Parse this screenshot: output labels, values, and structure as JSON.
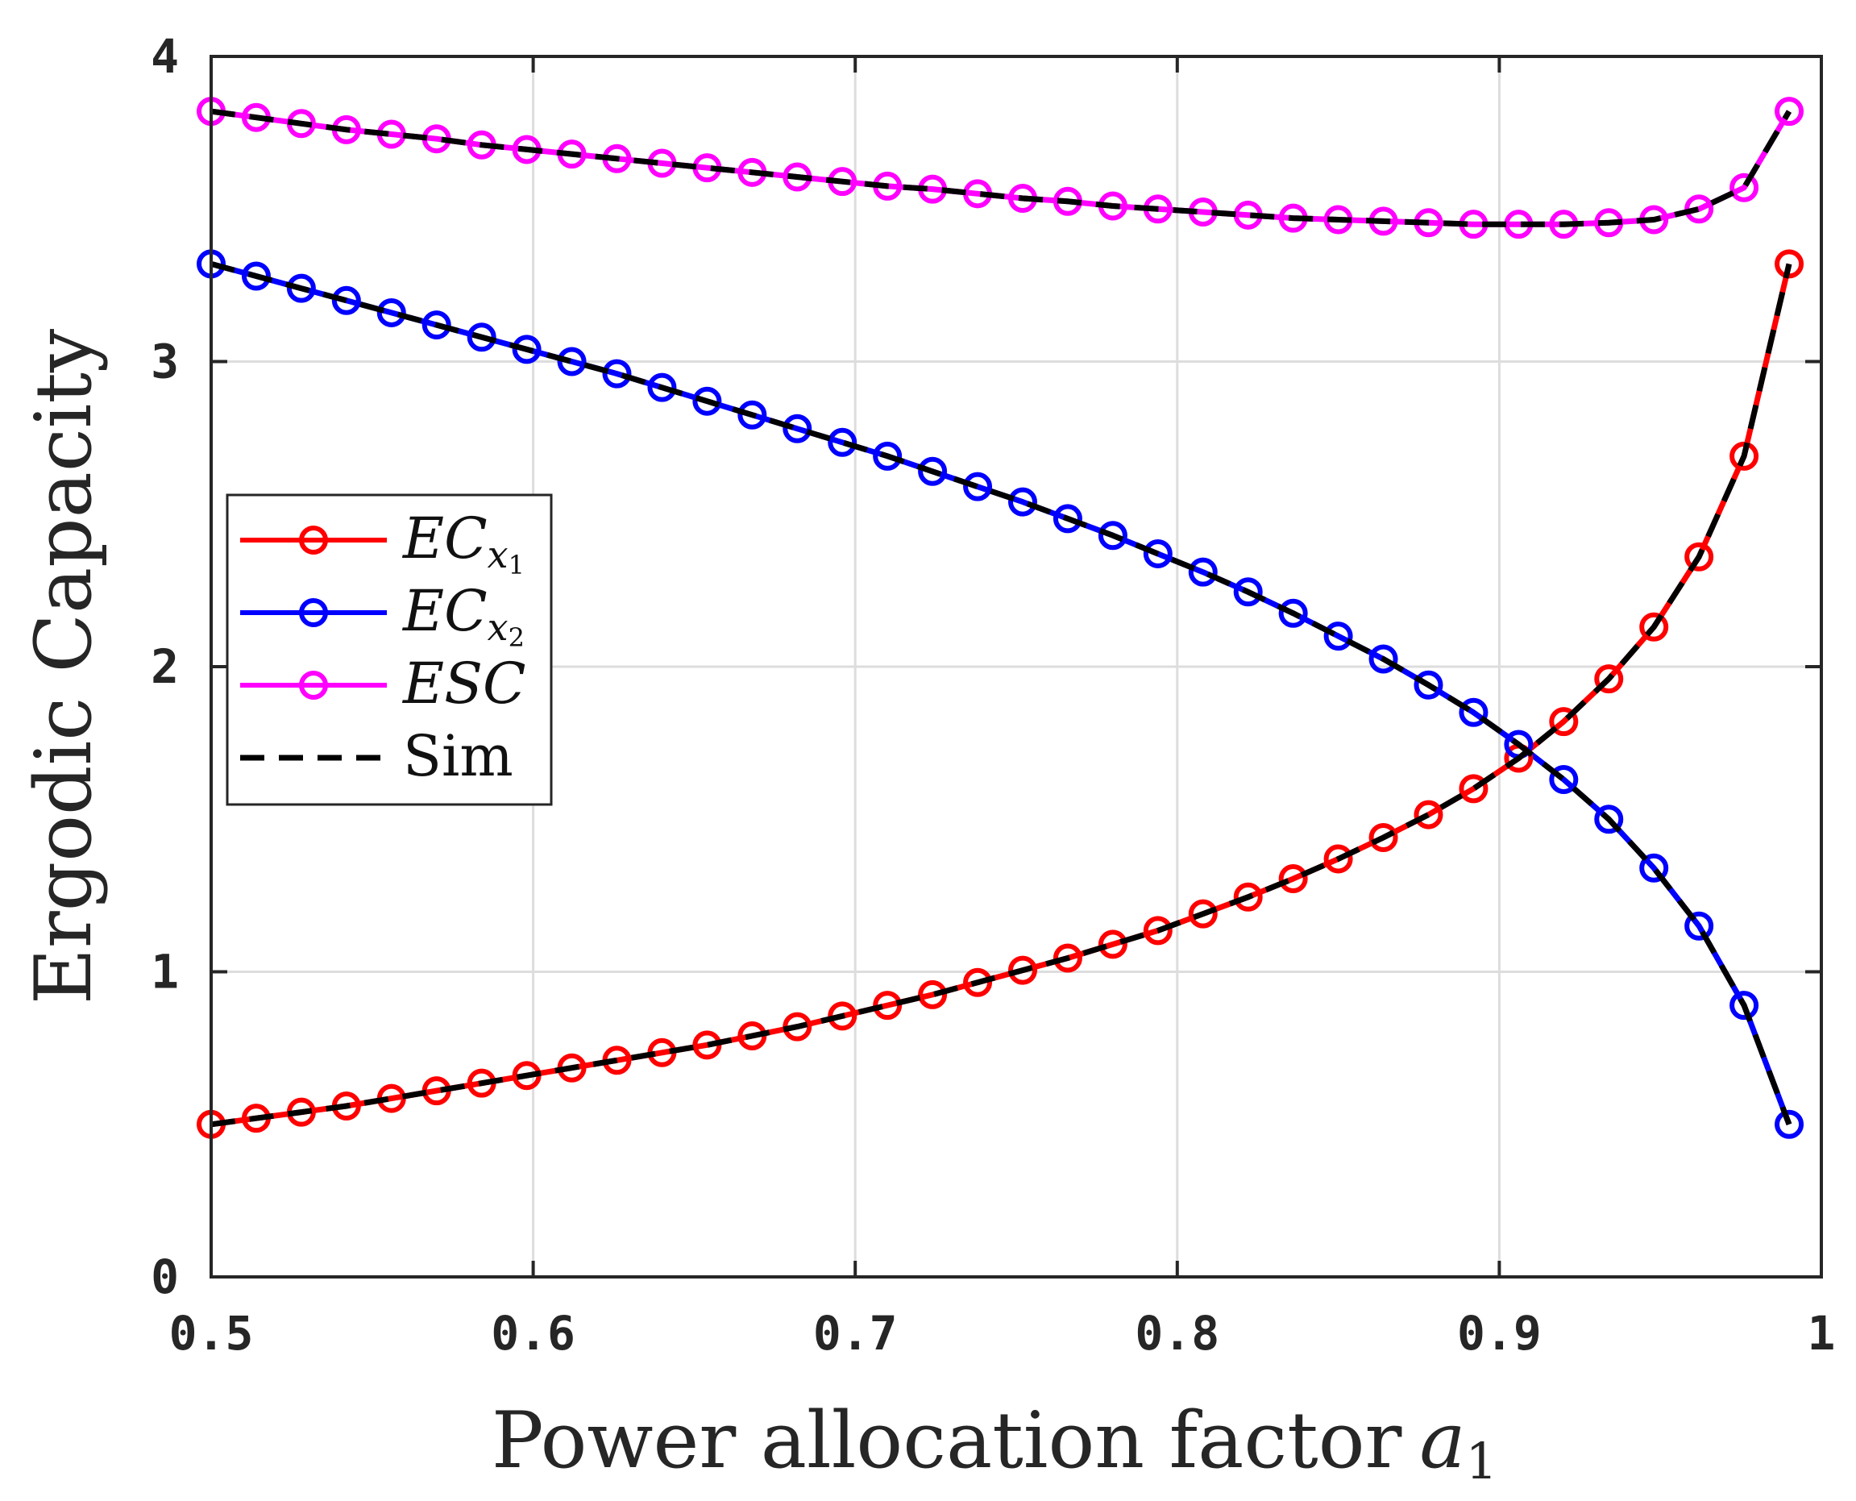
{
  "chart_data": {
    "type": "line",
    "title": "",
    "xlabel": "Power allocation factor",
    "xlabel_symbol": "a",
    "xlabel_subscript": "1",
    "ylabel": "Ergodic Capacity",
    "xlim": [
      0.5,
      1
    ],
    "ylim": [
      0,
      4
    ],
    "xticks": [
      0.5,
      0.6,
      0.7,
      0.8,
      0.9,
      1
    ],
    "xtick_labels": [
      "0.5",
      "0.6",
      "0.7",
      "0.8",
      "0.9",
      "1"
    ],
    "yticks": [
      0,
      1,
      2,
      3,
      4
    ],
    "ytick_labels": [
      "0",
      "1",
      "2",
      "3",
      "4"
    ],
    "grid": true,
    "legend_position": "middle-left",
    "x": [
      0.5,
      0.514,
      0.528,
      0.542,
      0.556,
      0.57,
      0.584,
      0.598,
      0.612,
      0.626,
      0.64,
      0.654,
      0.668,
      0.682,
      0.696,
      0.71,
      0.724,
      0.738,
      0.752,
      0.766,
      0.78,
      0.794,
      0.808,
      0.822,
      0.836,
      0.85,
      0.864,
      0.878,
      0.892,
      0.906,
      0.92,
      0.934,
      0.948,
      0.962,
      0.976,
      0.99
    ],
    "series": [
      {
        "name": "EC",
        "name_subscript": "x",
        "name_subsubscript": "1",
        "color": "#ff0000",
        "marker": "circle",
        "values": [
          0.5,
          0.52,
          0.54,
          0.56,
          0.585,
          0.61,
          0.635,
          0.66,
          0.685,
          0.71,
          0.735,
          0.76,
          0.79,
          0.82,
          0.855,
          0.89,
          0.925,
          0.965,
          1.005,
          1.045,
          1.09,
          1.135,
          1.19,
          1.245,
          1.305,
          1.37,
          1.44,
          1.515,
          1.6,
          1.7,
          1.82,
          1.96,
          2.13,
          2.36,
          2.69,
          3.32
        ]
      },
      {
        "name": "EC",
        "name_subscript": "x",
        "name_subsubscript": "2",
        "color": "#0000ff",
        "marker": "circle",
        "values": [
          3.32,
          3.28,
          3.24,
          3.2,
          3.16,
          3.12,
          3.08,
          3.04,
          3.0,
          2.96,
          2.915,
          2.87,
          2.825,
          2.78,
          2.735,
          2.69,
          2.64,
          2.59,
          2.54,
          2.485,
          2.43,
          2.37,
          2.31,
          2.245,
          2.175,
          2.1,
          2.025,
          1.94,
          1.85,
          1.745,
          1.63,
          1.5,
          1.34,
          1.15,
          0.89,
          0.5
        ]
      },
      {
        "name": "ESC",
        "color": "#ff00ff",
        "marker": "circle",
        "values": [
          3.82,
          3.8,
          3.78,
          3.76,
          3.745,
          3.73,
          3.71,
          3.695,
          3.68,
          3.665,
          3.65,
          3.635,
          3.62,
          3.605,
          3.59,
          3.575,
          3.565,
          3.55,
          3.535,
          3.525,
          3.51,
          3.5,
          3.49,
          3.48,
          3.47,
          3.465,
          3.46,
          3.455,
          3.45,
          3.45,
          3.45,
          3.455,
          3.465,
          3.5,
          3.57,
          3.82
        ]
      },
      {
        "name": "Sim",
        "color": "#000000",
        "marker": "none",
        "linestyle": "dashed",
        "overlays": [
          "EC_x1",
          "EC_x2",
          "ESC"
        ]
      }
    ]
  }
}
